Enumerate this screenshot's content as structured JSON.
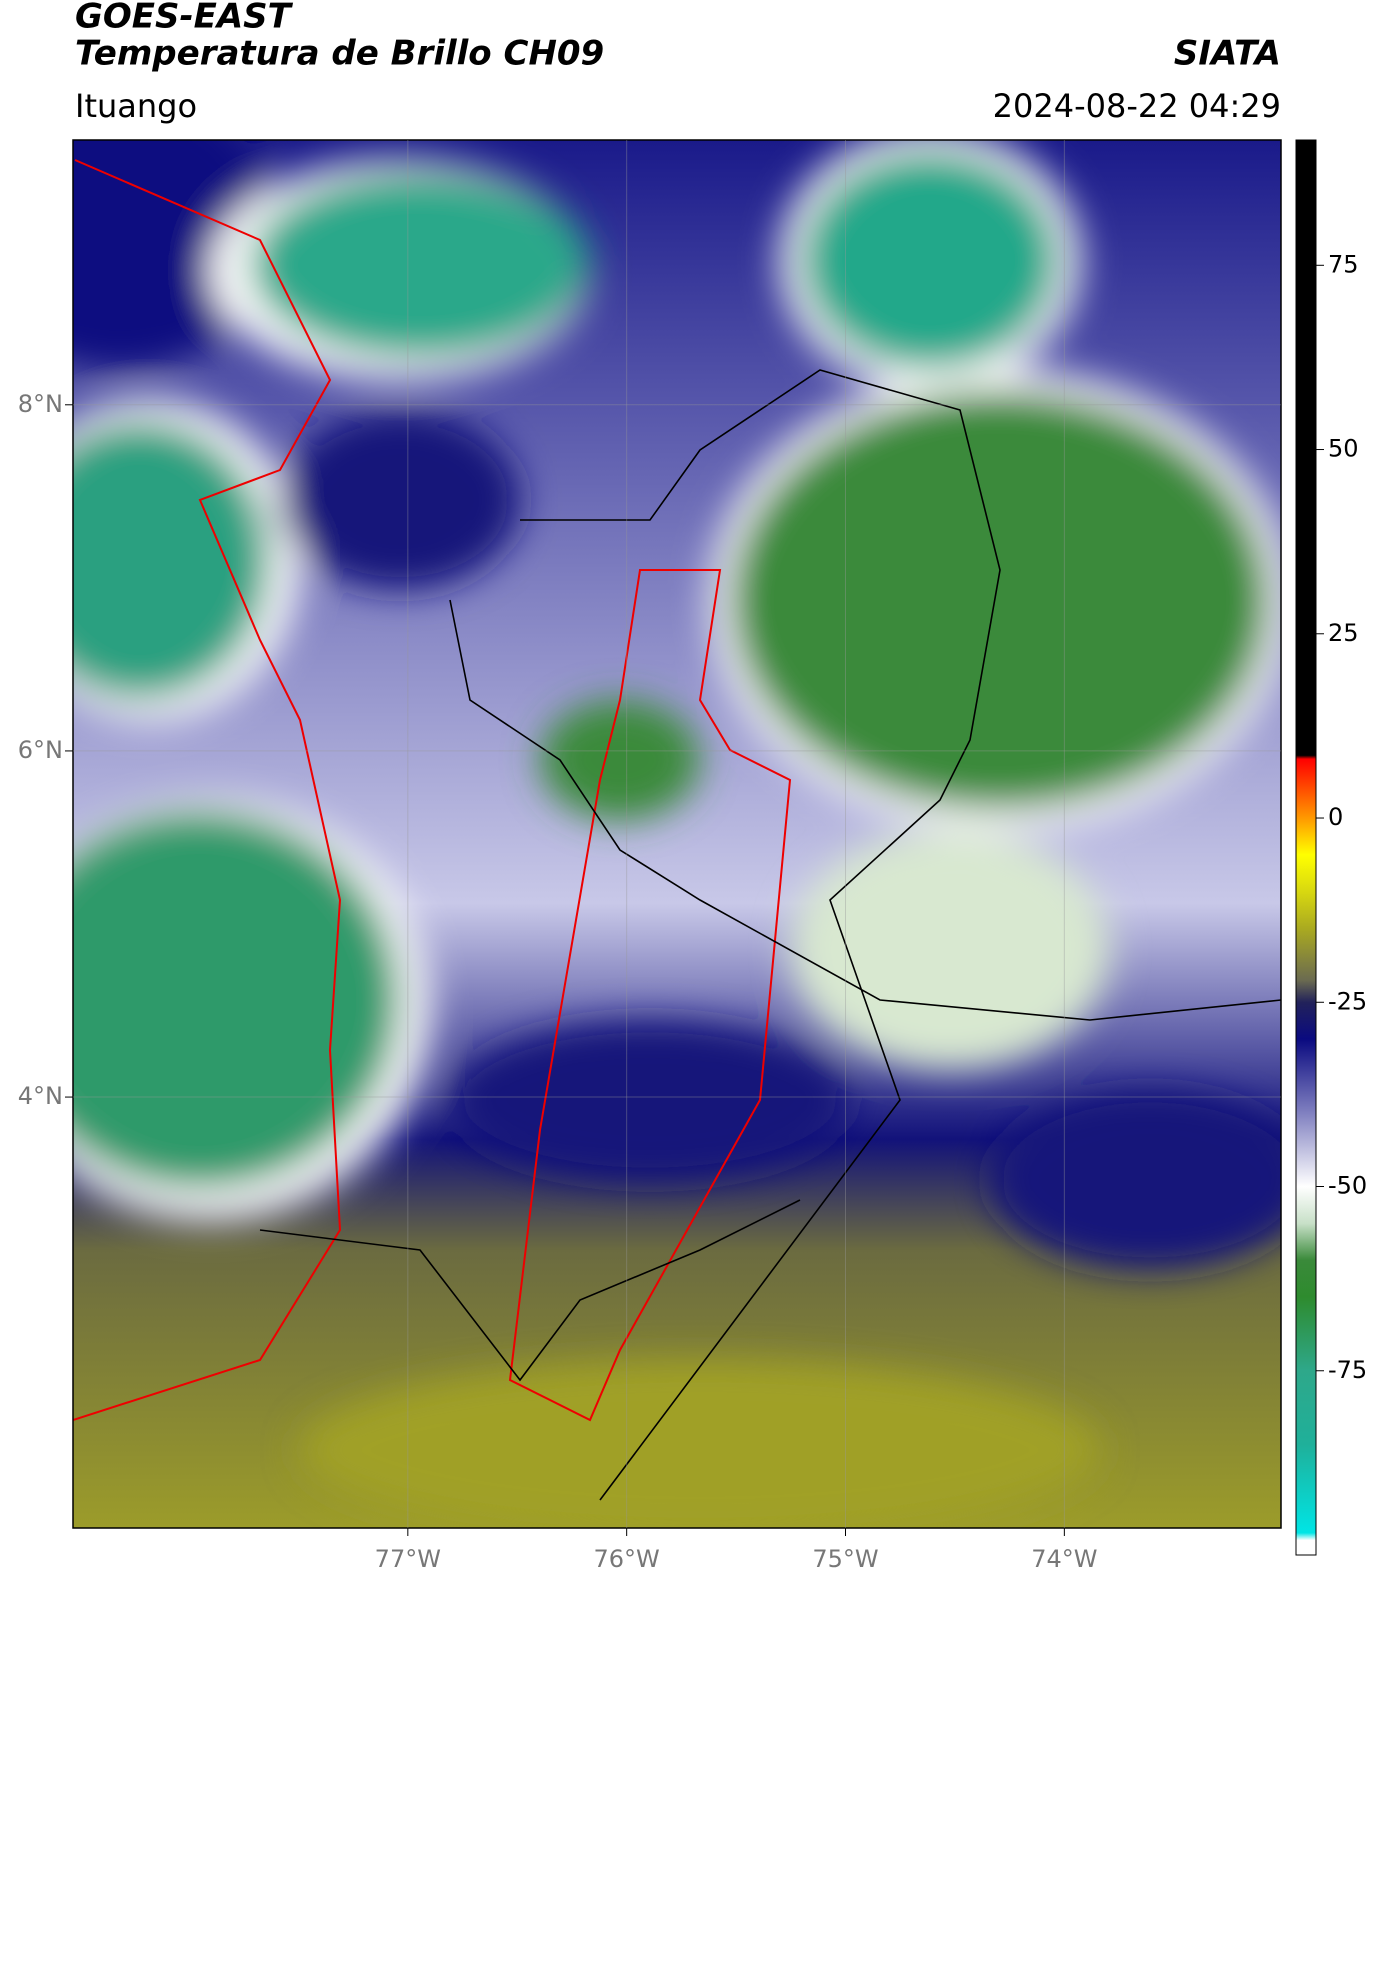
{
  "title": "GOES-EAST",
  "subtitle": "Temperatura de Brillo CH09",
  "agency": "SIATA",
  "location": "Ituango",
  "datetime": "2024-08-22 04:29",
  "map": {
    "xlim": [
      -78.53,
      -73.01
    ],
    "ylim": [
      1.51,
      9.53
    ],
    "xticks": [
      {
        "value": -77,
        "label": "77°W"
      },
      {
        "value": -76,
        "label": "76°W"
      },
      {
        "value": -75,
        "label": "75°W"
      },
      {
        "value": -74,
        "label": "74°W"
      }
    ],
    "yticks": [
      {
        "value": 4,
        "label": "4°N"
      },
      {
        "value": 6,
        "label": "6°N"
      },
      {
        "value": 8,
        "label": "8°N"
      }
    ],
    "grid": true
  },
  "colorbar": {
    "lim": [
      -100,
      92
    ],
    "ticks": [
      -75,
      -50,
      -25,
      0,
      25,
      50,
      75
    ],
    "colorscale": [
      [
        -100,
        "#ffffff"
      ],
      [
        -98,
        "#ffffff"
      ],
      [
        -97,
        "#00e5e5"
      ],
      [
        -85,
        "#1fb09a"
      ],
      [
        -75,
        "#2ea88a"
      ],
      [
        -65,
        "#2e8b2e"
      ],
      [
        -60,
        "#3a8a3a"
      ],
      [
        -55,
        "#c8e0c8"
      ],
      [
        -50,
        "#ffffff"
      ],
      [
        -40,
        "#8080c0"
      ],
      [
        -30,
        "#0a0a80"
      ],
      [
        -25,
        "#22225a"
      ],
      [
        -22,
        "#6b6b50"
      ],
      [
        -15,
        "#aaaa20"
      ],
      [
        -10,
        "#d8d810"
      ],
      [
        -5,
        "#ffff00"
      ],
      [
        0,
        "#ff9900"
      ],
      [
        8,
        "#ff0000"
      ],
      [
        8.5,
        "#000000"
      ],
      [
        92,
        "#000000"
      ]
    ]
  }
}
